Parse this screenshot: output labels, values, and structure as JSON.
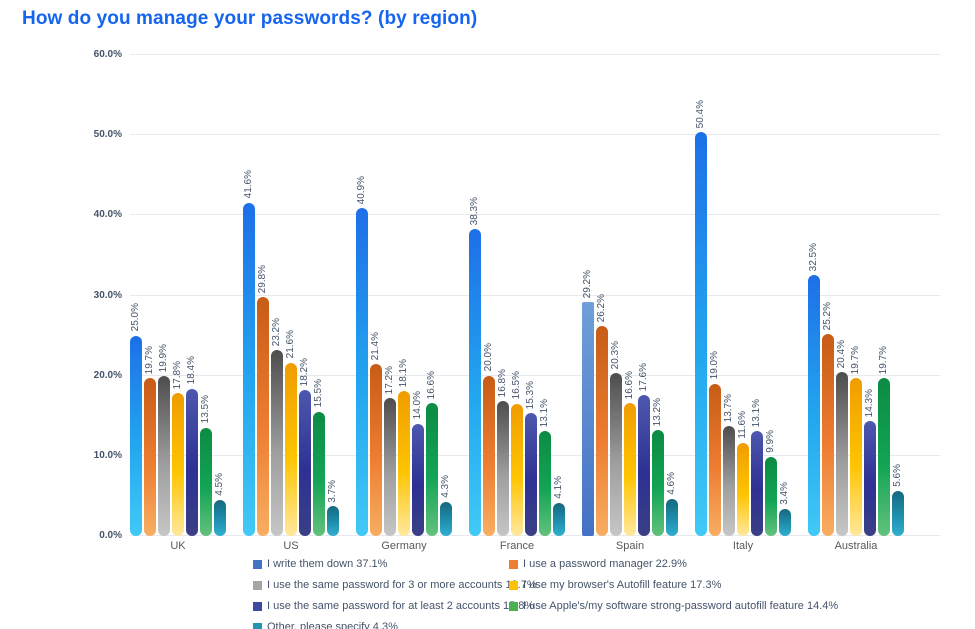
{
  "title": "How do you manage your passwords? (by region)",
  "chart_data": {
    "type": "bar",
    "title": "How do you manage your passwords? (by region)",
    "categories": [
      "UK",
      "US",
      "Germany",
      "France",
      "Spain",
      "Italy",
      "Australia"
    ],
    "series": [
      {
        "name": "I write them down",
        "overall": "37.1%",
        "values": [
          25.0,
          41.6,
          40.9,
          38.3,
          29.2,
          50.4,
          32.5
        ],
        "bar_gradient": [
          "#1E6FE8",
          "#22A7EF",
          "#41C9F6"
        ],
        "legend_color": "#4472C4"
      },
      {
        "name": "I use a password manager",
        "overall": "22.9%",
        "values": [
          19.7,
          29.8,
          21.4,
          20.0,
          26.2,
          19.0,
          25.2
        ],
        "bar_gradient": [
          "#C75C16",
          "#ED7D31",
          "#F8AE62"
        ],
        "legend_color": "#ED7D31"
      },
      {
        "name": "I use the same password for 3 or more accounts",
        "overall": "18.7%",
        "values": [
          19.9,
          23.2,
          17.2,
          16.8,
          20.3,
          13.7,
          20.4
        ],
        "bar_gradient": [
          "#4D4D4D",
          "#9E9E9E",
          "#C6C6C6"
        ],
        "legend_color": "#A5A5A5"
      },
      {
        "name": "I use my browser's Autofill feature",
        "overall": "17.3%",
        "values": [
          17.8,
          21.6,
          18.1,
          16.5,
          16.6,
          11.6,
          19.7
        ],
        "bar_gradient": [
          "#F09C00",
          "#FFC400",
          "#FFE89E"
        ],
        "legend_color": "#FFC000"
      },
      {
        "name": "I use the same password for at least 2 accounts",
        "overall": "15.8%",
        "values": [
          18.4,
          18.2,
          14.0,
          15.3,
          17.6,
          13.1,
          14.3
        ],
        "bar_gradient": [
          "#4E58AE",
          "#2E3193",
          "#3A3F85"
        ],
        "legend_color": "#3B4CA0"
      },
      {
        "name": "I use Apple's/my software strong-password autofill feature",
        "overall": "14.4%",
        "values": [
          13.5,
          15.5,
          16.6,
          13.1,
          13.2,
          9.9,
          19.7
        ],
        "bar_gradient": [
          "#0C8B43",
          "#12A455",
          "#63C17C"
        ],
        "legend_color": "#4CAF50"
      },
      {
        "name": "Other, please specify",
        "overall": "4.3%",
        "values": [
          4.5,
          3.7,
          4.3,
          4.1,
          4.6,
          3.4,
          5.6
        ],
        "bar_gradient": [
          "#15687E",
          "#1F8FAD",
          "#31AFCF"
        ],
        "legend_color": "#2196B0"
      }
    ],
    "y_ticks": [
      "0.0%",
      "10.0%",
      "20.0%",
      "30.0%",
      "40.0%",
      "50.0%",
      "60.0%"
    ],
    "ylim": [
      0,
      60
    ],
    "grid": true,
    "legend_position": "bottom",
    "highlight": {
      "category": "Spain",
      "series_index": 0,
      "gradient": [
        "#6FA0D8",
        "#4472C4"
      ]
    }
  },
  "legend": {
    "column_order": [
      [
        0,
        2,
        4,
        6
      ],
      [
        1,
        3,
        5
      ]
    ]
  },
  "colors": {
    "title": "#1565F0",
    "axis_label": "#44546A",
    "region_label": "#595959",
    "gridline": "#E6E9EE",
    "value_label": "#44546A",
    "background": "#FFFFFF"
  }
}
